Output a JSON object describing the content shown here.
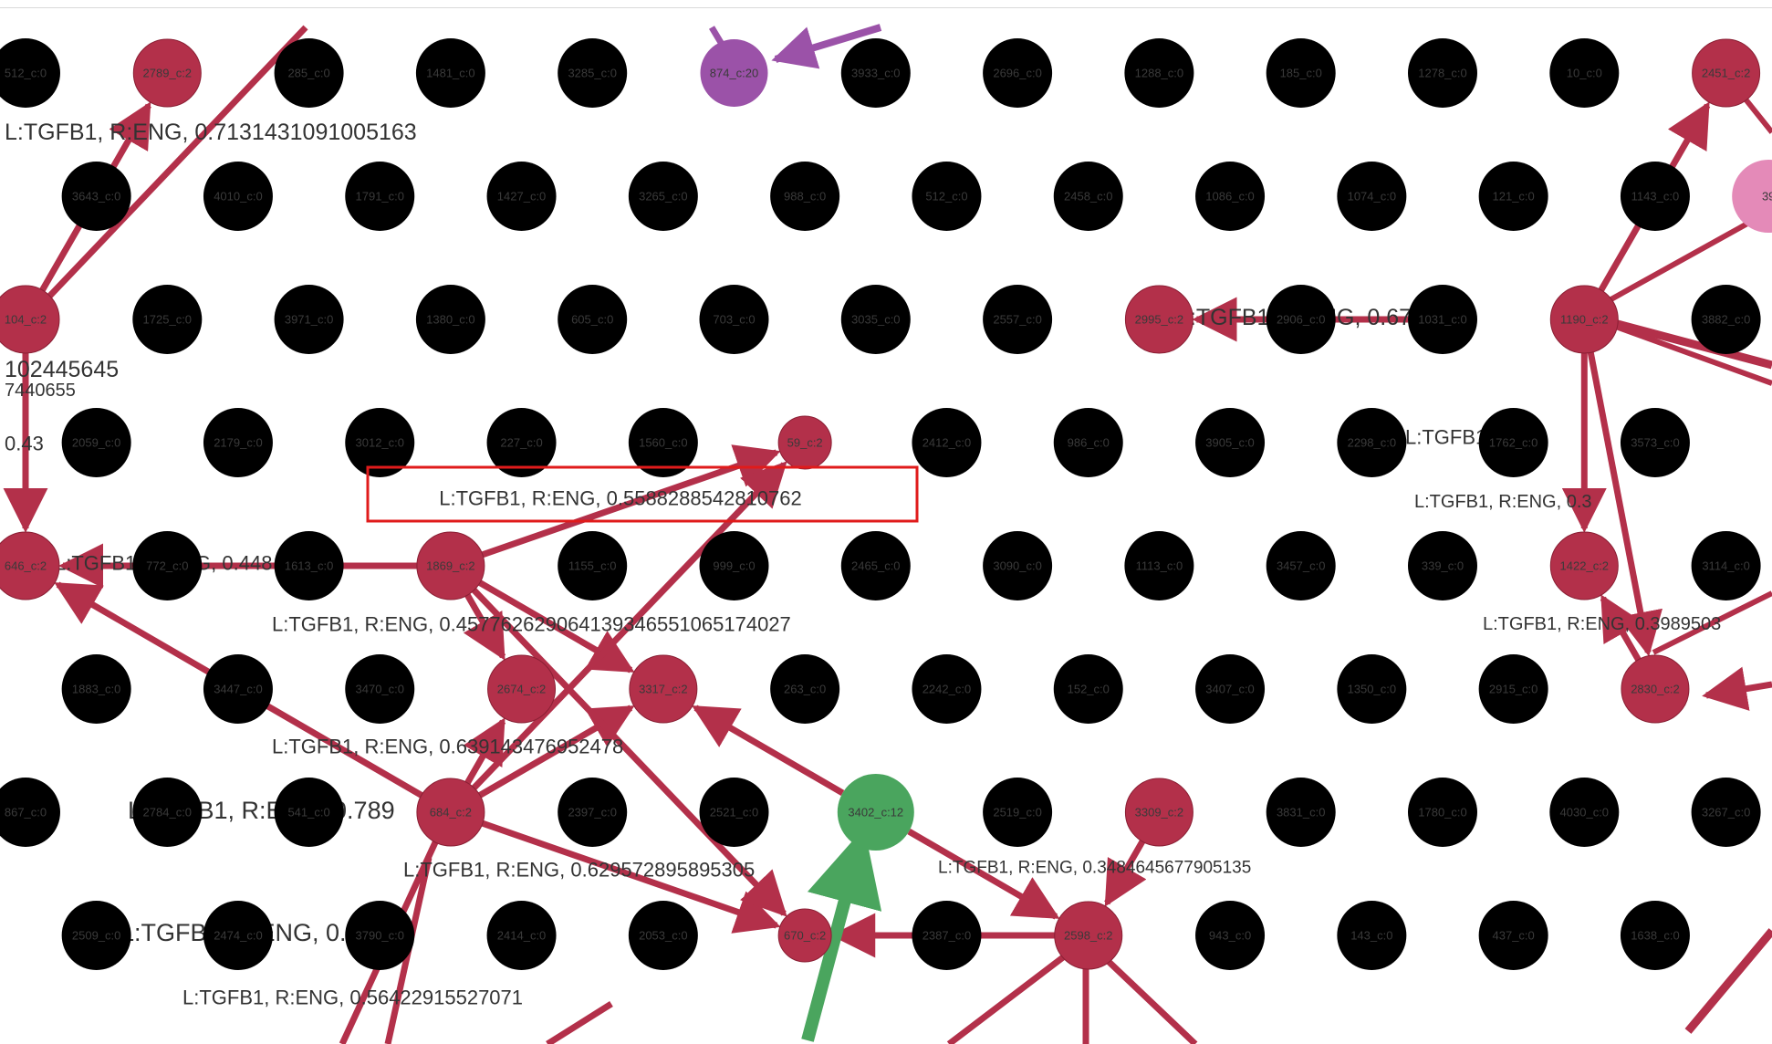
{
  "colors": {
    "background": "#ffffff",
    "cluster_0": "#000000",
    "cluster_2": "#b3304a",
    "cluster_12": "#4aa55e",
    "cluster_20": "#9b52a8",
    "cluster_pink": "#e48ab8",
    "cluster_teal": "#3e9e86",
    "node_label": "#3a3a3a",
    "highlight_box": "#e01b1b"
  },
  "nodes": [
    {
      "id": "n285",
      "label": "285_c:0",
      "cluster": 0,
      "col": 2,
      "row": 0
    },
    {
      "id": "n1481",
      "label": "1481_c:0",
      "cluster": 0,
      "col": 3,
      "row": 0
    },
    {
      "id": "n3285",
      "label": "3285_c:0",
      "cluster": 0,
      "col": 4,
      "row": 0
    },
    {
      "id": "n3933",
      "label": "3933_c:0",
      "cluster": 0,
      "col": 6,
      "row": 0
    },
    {
      "id": "n2696",
      "label": "2696_c:0",
      "cluster": 0,
      "col": 7,
      "row": 0
    },
    {
      "id": "n1288",
      "label": "1288_c:0",
      "cluster": 0,
      "col": 8,
      "row": 0
    },
    {
      "id": "n185",
      "label": "185_c:0",
      "cluster": 0,
      "col": 9,
      "row": 0
    },
    {
      "id": "n1278",
      "label": "1278_c:0",
      "cluster": 0,
      "col": 10,
      "row": 0
    },
    {
      "id": "n10",
      "label": "10_c:0",
      "cluster": 0,
      "col": 11,
      "row": 0
    },
    {
      "id": "n3643",
      "label": "3643_c:0",
      "cluster": 0,
      "col": 0.5,
      "row": 1
    },
    {
      "id": "n4010",
      "label": "4010_c:0",
      "cluster": 0,
      "col": 1.5,
      "row": 1
    },
    {
      "id": "n1791",
      "label": "1791_c:0",
      "cluster": 0,
      "col": 2.5,
      "row": 1
    },
    {
      "id": "n1427",
      "label": "1427_c:0",
      "cluster": 0,
      "col": 3.5,
      "row": 1
    },
    {
      "id": "n3265",
      "label": "3265_c:0",
      "cluster": 0,
      "col": 4.5,
      "row": 1
    },
    {
      "id": "n988",
      "label": "988_c:0",
      "cluster": 0,
      "col": 5.5,
      "row": 1
    },
    {
      "id": "n512",
      "label": "512_c:0",
      "cluster": 0,
      "col": 6.5,
      "row": 1
    },
    {
      "id": "n2458",
      "label": "2458_c:0",
      "cluster": 0,
      "col": 7.5,
      "row": 1
    },
    {
      "id": "n1086",
      "label": "1086_c:0",
      "cluster": 0,
      "col": 8.5,
      "row": 1
    },
    {
      "id": "n1074",
      "label": "1074_c:0",
      "cluster": 0,
      "col": 9.5,
      "row": 1
    },
    {
      "id": "n121",
      "label": "121_c:0",
      "cluster": 0,
      "col": 10.5,
      "row": 1
    },
    {
      "id": "n1143",
      "label": "1143_c:0",
      "cluster": 0,
      "col": 11.5,
      "row": 1
    },
    {
      "id": "n1725",
      "label": "1725_c:0",
      "cluster": 0,
      "col": 1,
      "row": 2
    },
    {
      "id": "n3971",
      "label": "3971_c:0",
      "cluster": 0,
      "col": 2,
      "row": 2
    },
    {
      "id": "n1380",
      "label": "1380_c:0",
      "cluster": 0,
      "col": 3,
      "row": 2
    },
    {
      "id": "n605",
      "label": "605_c:0",
      "cluster": 0,
      "col": 4,
      "row": 2
    },
    {
      "id": "n703",
      "label": "703_c:0",
      "cluster": 0,
      "col": 5,
      "row": 2
    },
    {
      "id": "n3035",
      "label": "3035_c:0",
      "cluster": 0,
      "col": 6,
      "row": 2
    },
    {
      "id": "n2557",
      "label": "2557_c:0",
      "cluster": 0,
      "col": 7,
      "row": 2
    },
    {
      "id": "n2906",
      "label": "2906_c:0",
      "cluster": 0,
      "col": 9,
      "row": 2
    },
    {
      "id": "n1031",
      "label": "1031_c:0",
      "cluster": 0,
      "col": 10,
      "row": 2
    },
    {
      "id": "n3882",
      "label": "3882_c:0",
      "cluster": 0,
      "col": 12,
      "row": 2
    },
    {
      "id": "n2059",
      "label": "2059_c:0",
      "cluster": 0,
      "col": 0.5,
      "row": 3
    },
    {
      "id": "n2179",
      "label": "2179_c:0",
      "cluster": 0,
      "col": 1.5,
      "row": 3
    },
    {
      "id": "n3012",
      "label": "3012_c:0",
      "cluster": 0,
      "col": 2.5,
      "row": 3
    },
    {
      "id": "n227",
      "label": "227_c:0",
      "cluster": 0,
      "col": 3.5,
      "row": 3
    },
    {
      "id": "n1560",
      "label": "1560_c:0",
      "cluster": 0,
      "col": 4.5,
      "row": 3
    },
    {
      "id": "n2412",
      "label": "2412_c:0",
      "cluster": 0,
      "col": 6.5,
      "row": 3
    },
    {
      "id": "n986",
      "label": "986_c:0",
      "cluster": 0,
      "col": 7.5,
      "row": 3
    },
    {
      "id": "n3905",
      "label": "3905_c:0",
      "cluster": 0,
      "col": 8.5,
      "row": 3
    },
    {
      "id": "n2298",
      "label": "2298_c:0",
      "cluster": 0,
      "col": 9.5,
      "row": 3
    },
    {
      "id": "n1762",
      "label": "1762_c:0",
      "cluster": 0,
      "col": 10.5,
      "row": 3
    },
    {
      "id": "n3573",
      "label": "3573_c:0",
      "cluster": 0,
      "col": 11.5,
      "row": 3
    },
    {
      "id": "n772",
      "label": "772_c:0",
      "cluster": 0,
      "col": 1,
      "row": 4
    },
    {
      "id": "n1613",
      "label": "1613_c:0",
      "cluster": 0,
      "col": 2,
      "row": 4
    },
    {
      "id": "n1155",
      "label": "1155_c:0",
      "cluster": 0,
      "col": 4,
      "row": 4
    },
    {
      "id": "n999",
      "label": "999_c:0",
      "cluster": 0,
      "col": 5,
      "row": 4
    },
    {
      "id": "n2465",
      "label": "2465_c:0",
      "cluster": 0,
      "col": 6,
      "row": 4
    },
    {
      "id": "n3090",
      "label": "3090_c:0",
      "cluster": 0,
      "col": 7,
      "row": 4
    },
    {
      "id": "n1113",
      "label": "1113_c:0",
      "cluster": 0,
      "col": 8,
      "row": 4
    },
    {
      "id": "n3457",
      "label": "3457_c:0",
      "cluster": 0,
      "col": 9,
      "row": 4
    },
    {
      "id": "n339",
      "label": "339_c:0",
      "cluster": 0,
      "col": 10,
      "row": 4
    },
    {
      "id": "n3114",
      "label": "3114_c:0",
      "cluster": 0,
      "col": 12,
      "row": 4
    },
    {
      "id": "n1883",
      "label": "1883_c:0",
      "cluster": 0,
      "col": 0.5,
      "row": 5
    },
    {
      "id": "n3447",
      "label": "3447_c:0",
      "cluster": 0,
      "col": 1.5,
      "row": 5
    },
    {
      "id": "n3470",
      "label": "3470_c:0",
      "cluster": 0,
      "col": 2.5,
      "row": 5
    },
    {
      "id": "n263",
      "label": "263_c:0",
      "cluster": 0,
      "col": 5.5,
      "row": 5
    },
    {
      "id": "n2242",
      "label": "2242_c:0",
      "cluster": 0,
      "col": 6.5,
      "row": 5
    },
    {
      "id": "n152",
      "label": "152_c:0",
      "cluster": 0,
      "col": 7.5,
      "row": 5
    },
    {
      "id": "n3407",
      "label": "3407_c:0",
      "cluster": 0,
      "col": 8.5,
      "row": 5
    },
    {
      "id": "n1350",
      "label": "1350_c:0",
      "cluster": 0,
      "col": 9.5,
      "row": 5
    },
    {
      "id": "n2915",
      "label": "2915_c:0",
      "cluster": 0,
      "col": 10.5,
      "row": 5
    },
    {
      "id": "n867",
      "label": "867_c:0",
      "cluster": 0,
      "col": 0,
      "row": 6
    },
    {
      "id": "n2784",
      "label": "2784_c:0",
      "cluster": 0,
      "col": 1,
      "row": 6
    },
    {
      "id": "n541",
      "label": "541_c:0",
      "cluster": 0,
      "col": 2,
      "row": 6
    },
    {
      "id": "n2397",
      "label": "2397_c:0",
      "cluster": 0,
      "col": 4,
      "row": 6
    },
    {
      "id": "n2521",
      "label": "2521_c:0",
      "cluster": 0,
      "col": 5,
      "row": 6
    },
    {
      "id": "n2519",
      "label": "2519_c:0",
      "cluster": 0,
      "col": 7,
      "row": 6
    },
    {
      "id": "n3831",
      "label": "3831_c:0",
      "cluster": 0,
      "col": 9,
      "row": 6
    },
    {
      "id": "n1780",
      "label": "1780_c:0",
      "cluster": 0,
      "col": 10,
      "row": 6
    },
    {
      "id": "n4030",
      "label": "4030_c:0",
      "cluster": 0,
      "col": 11,
      "row": 6
    },
    {
      "id": "n3267",
      "label": "3267_c:0",
      "cluster": 0,
      "col": 12,
      "row": 6
    },
    {
      "id": "n2509",
      "label": "2509_c:0",
      "cluster": 0,
      "col": 0.5,
      "row": 7
    },
    {
      "id": "n2474",
      "label": "2474_c:0",
      "cluster": 0,
      "col": 1.5,
      "row": 7
    },
    {
      "id": "n3790",
      "label": "3790_c:0",
      "cluster": 0,
      "col": 2.5,
      "row": 7
    },
    {
      "id": "n2414",
      "label": "2414_c:0",
      "cluster": 0,
      "col": 3.5,
      "row": 7
    },
    {
      "id": "n2053",
      "label": "2053_c:0",
      "cluster": 0,
      "col": 4.5,
      "row": 7
    },
    {
      "id": "n2387",
      "label": "2387_c:0",
      "cluster": 0,
      "col": 6.5,
      "row": 7
    },
    {
      "id": "n943",
      "label": "943_c:0",
      "cluster": 0,
      "col": 8.5,
      "row": 7
    },
    {
      "id": "n143",
      "label": "143_c:0",
      "cluster": 0,
      "col": 9.5,
      "row": 7
    },
    {
      "id": "n437",
      "label": "437_c:0",
      "cluster": 0,
      "col": 10.5,
      "row": 7
    },
    {
      "id": "n1638",
      "label": "1638_c:0",
      "cluster": 0,
      "col": 11.5,
      "row": 7
    },
    {
      "id": "n512b",
      "label": "512_c:0",
      "cluster": 0,
      "col": 0,
      "row": 0
    },
    {
      "id": "n2789",
      "label": "2789_c:2",
      "cluster": 2,
      "col": 1,
      "row": 0
    },
    {
      "id": "n874",
      "label": "874_c:20",
      "cluster": 20,
      "col": 5,
      "row": 0
    },
    {
      "id": "n2451",
      "label": "2451_c:2",
      "cluster": 2,
      "col": 12,
      "row": 0
    },
    {
      "id": "n104",
      "label": "104_c:2",
      "cluster": 2,
      "col": 0,
      "row": 2
    },
    {
      "id": "n2995",
      "label": "2995_c:2",
      "cluster": 2,
      "col": 8,
      "row": 2
    },
    {
      "id": "n1190",
      "label": "1190_c:2",
      "cluster": 2,
      "col": 11,
      "row": 2
    },
    {
      "id": "n59",
      "label": "59_c:2",
      "cluster": 2,
      "col": 5.5,
      "row": 3
    },
    {
      "id": "n646",
      "label": "646_c:2",
      "cluster": 2,
      "col": 0,
      "row": 4
    },
    {
      "id": "n1869",
      "label": "1869_c:2",
      "cluster": 2,
      "col": 3,
      "row": 4
    },
    {
      "id": "n1422",
      "label": "1422_c:2",
      "cluster": 2,
      "col": 11,
      "row": 4
    },
    {
      "id": "n2674",
      "label": "2674_c:2",
      "cluster": 2,
      "col": 3.5,
      "row": 5
    },
    {
      "id": "n3317",
      "label": "3317_c:2",
      "cluster": 2,
      "col": 4.5,
      "row": 5
    },
    {
      "id": "n2830",
      "label": "2830_c:2",
      "cluster": 2,
      "col": 11.5,
      "row": 5
    },
    {
      "id": "n684",
      "label": "684_c:2",
      "cluster": 2,
      "col": 3,
      "row": 6
    },
    {
      "id": "n3402",
      "label": "3402_c:12",
      "cluster": 12,
      "col": 6,
      "row": 6
    },
    {
      "id": "n3309",
      "label": "3309_c:2",
      "cluster": 2,
      "col": 8,
      "row": 6
    },
    {
      "id": "n670",
      "label": "670_c:2",
      "cluster": 2,
      "col": 5.5,
      "row": 7
    },
    {
      "id": "n2598",
      "label": "2598_c:2",
      "cluster": 2,
      "col": 7.5,
      "row": 7
    },
    {
      "id": "n39pink",
      "label": "39",
      "cluster": "pink",
      "col": 12.3,
      "row": 1
    }
  ],
  "edges": [
    {
      "from": "n104",
      "to": "n2789"
    },
    {
      "from": "n104",
      "to": "n646"
    },
    {
      "from": "n1869",
      "to": "n646"
    },
    {
      "from": "n1869",
      "to": "n59"
    },
    {
      "from": "n1869",
      "to": "n2674"
    },
    {
      "from": "n1869",
      "to": "n3317"
    },
    {
      "from": "n684",
      "to": "n59"
    },
    {
      "from": "n684",
      "to": "n646"
    },
    {
      "from": "n684",
      "to": "n2674"
    },
    {
      "from": "n684",
      "to": "n3317"
    },
    {
      "from": "n684",
      "to": "n670"
    },
    {
      "from": "n3402",
      "to": "n3317"
    },
    {
      "from": "n3402",
      "to": "n2598"
    },
    {
      "from": "n2598",
      "to": "n670"
    },
    {
      "from": "n3309",
      "to": "n2598"
    },
    {
      "from": "n1869",
      "to": "n670"
    },
    {
      "from": "n1031",
      "to": "n2995"
    },
    {
      "from": "n1190",
      "to": "n2451"
    },
    {
      "from": "n1190",
      "to": "n1422"
    },
    {
      "from": "n1190",
      "to": "n2830"
    },
    {
      "from": "n2830",
      "to": "n1422"
    }
  ],
  "edge_labels": [
    {
      "text": "L:TGFB1, R:ENG, 0.7131431091005163",
      "size": 25
    },
    {
      "text": "L:TGFB1, R:ENG, 0.5588288542810762",
      "size": 22,
      "highlight": true
    },
    {
      "text": "L:TGFB1, R:ENG, 0.457762629064139346551065174027",
      "size": 22
    },
    {
      "text": "L:TGFB1, R:ENG, 0.639143476952478",
      "size": 22
    },
    {
      "text": "L:TGFB1, R:ENG, 0.629572895895305",
      "size": 22
    },
    {
      "text": "L:TGFB1, R:ENG, 0.3484645677905135",
      "size": 19
    },
    {
      "text": "L:TGFB1, R:ENG, 0.56422915527071",
      "size": 22
    },
    {
      "text": "L:TGFB1, R:ENG, 0.448",
      "size": 22
    },
    {
      "text": "L:TGFB1, R:ENG, 0.789",
      "size": 27
    },
    {
      "text": "L:TGFB1, R:ENG, 0.679",
      "size": 25
    },
    {
      "text": "L:TGFB1, R:ENG, 0.3989503",
      "size": 20
    },
    {
      "text": "L:TGFB1, R:ENG, 0.3",
      "size": 20
    },
    {
      "text": "102445645",
      "size": 25
    },
    {
      "text": "0.43",
      "size": 22
    },
    {
      "text": "7440655",
      "size": 20
    },
    {
      "text": "L:TGFB1, R:ENG, 0.2477",
      "size": 27
    },
    {
      "text": "L:TGFB1",
      "size": 22
    }
  ]
}
